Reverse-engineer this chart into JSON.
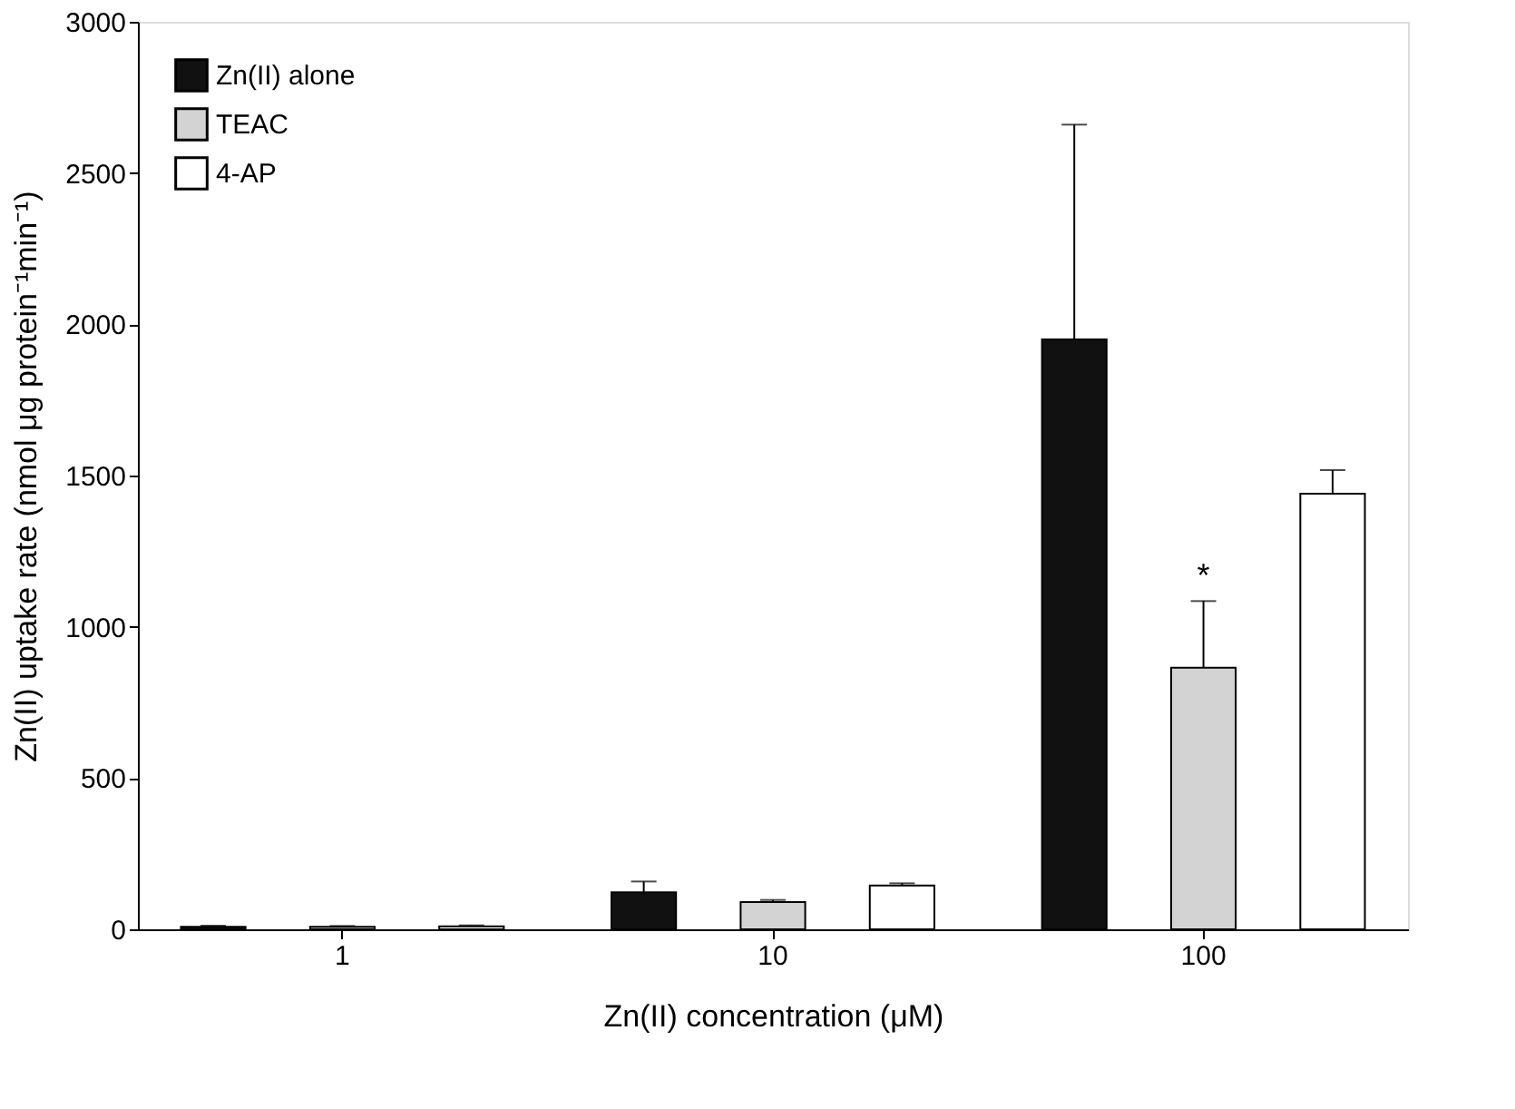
{
  "chart_data": {
    "type": "bar",
    "xlabel": "Zn(II) concentration (μM)",
    "ylabel": "Zn(II) uptake rate (nmol μg protein⁻¹min⁻¹)",
    "categories": [
      "1",
      "10",
      "100"
    ],
    "series": [
      {
        "name": "Zn(II) alone",
        "color": "#111111",
        "values": [
          8,
          122,
          1950
        ],
        "errors": [
          [
            8,
            12
          ],
          [
            122,
            158
          ],
          [
            1950,
            2660
          ]
        ]
      },
      {
        "name": "TEAC",
        "color": "#d3d3d3",
        "values": [
          8,
          90,
          865
        ],
        "errors": [
          [
            8,
            11
          ],
          [
            90,
            97
          ],
          [
            865,
            1085
          ]
        ]
      },
      {
        "name": "4-AP",
        "color": "#ffffff",
        "values": [
          10,
          145,
          1440
        ],
        "errors": [
          [
            10,
            13
          ],
          [
            145,
            152
          ],
          [
            1440,
            1518
          ]
        ]
      }
    ],
    "ylim": [
      0,
      3000
    ],
    "yticks": [
      0,
      500,
      1000,
      1500,
      2000,
      2500,
      3000
    ],
    "annotations": [
      {
        "text": "*",
        "x": "100",
        "y": 1085
      }
    ],
    "legend": "top left",
    "grid": false
  }
}
